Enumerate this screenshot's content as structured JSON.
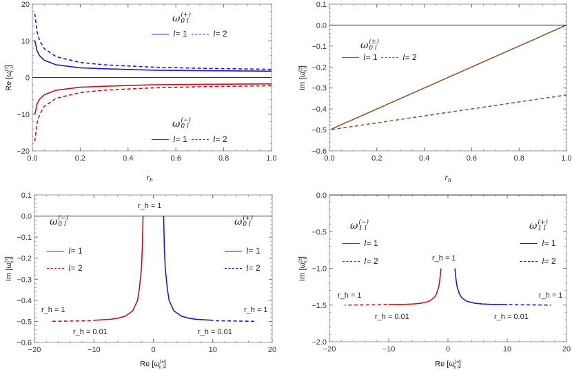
{
  "colors": {
    "plus": "#1a1ab8",
    "minus": "#b8161c",
    "imag": "#8c5a32",
    "zero_line": "#333333"
  },
  "chart_data": [
    {
      "type": "line",
      "id": "A",
      "xlabel": "r",
      "xlabel_sub": "h",
      "ylabel": "Re [ω",
      "ylabel_sup": "(±)",
      "ylabel_sub": "n l",
      "ylabel_end": "]",
      "xlim": [
        0,
        1
      ],
      "ylim": [
        -20,
        20
      ],
      "xticks": [
        0,
        0.2,
        0.4,
        0.6,
        0.8,
        1.0
      ],
      "xtick_labels": [
        "0.0",
        "0.2",
        "0.4",
        "0.6",
        "0.8",
        "1.0"
      ],
      "yticks": [
        -20,
        -10,
        0,
        10,
        20
      ],
      "ytick_labels": [
        "−20",
        "−10",
        "0",
        "10",
        "20"
      ],
      "minor_x": 0.05,
      "minor_y": 2,
      "legend": [
        {
          "title": "ω",
          "sup": "(+)",
          "sub": "0 l",
          "entries": [
            "l = 1",
            "l = 2"
          ]
        },
        {
          "title": "ω",
          "sup": "(−)",
          "sub": "0 l",
          "entries": [
            "l = 1",
            "l = 2"
          ]
        }
      ],
      "series": [
        {
          "branch": "plus",
          "l": 1,
          "dashed": false,
          "x": [
            0.01,
            0.02,
            0.03,
            0.05,
            0.1,
            0.2,
            0.3,
            0.5,
            0.7,
            1.0
          ],
          "y": [
            10.1,
            7.21,
            5.95,
            4.69,
            3.46,
            2.65,
            2.38,
            2.0,
            1.85,
            1.73
          ]
        },
        {
          "branch": "plus",
          "l": 2,
          "dashed": true,
          "x": [
            0.01,
            0.02,
            0.03,
            0.05,
            0.1,
            0.2,
            0.3,
            0.5,
            0.7,
            1.0
          ],
          "y": [
            17.4,
            12.3,
            10.1,
            7.87,
            5.66,
            4.12,
            3.46,
            2.83,
            2.51,
            2.24
          ]
        },
        {
          "branch": "minus",
          "l": 1,
          "dashed": false,
          "x": [
            0.01,
            0.02,
            0.03,
            0.05,
            0.1,
            0.2,
            0.3,
            0.5,
            0.7,
            1.0
          ],
          "y": [
            -10.1,
            -7.21,
            -5.95,
            -4.69,
            -3.46,
            -2.65,
            -2.38,
            -2.0,
            -1.85,
            -1.73
          ]
        },
        {
          "branch": "minus",
          "l": 2,
          "dashed": true,
          "x": [
            0.01,
            0.02,
            0.03,
            0.05,
            0.1,
            0.2,
            0.3,
            0.5,
            0.7,
            1.0
          ],
          "y": [
            -17.4,
            -12.3,
            -10.1,
            -7.87,
            -5.66,
            -4.12,
            -3.46,
            -2.83,
            -2.51,
            -2.24
          ]
        }
      ]
    },
    {
      "type": "line",
      "id": "B",
      "xlabel": "r",
      "xlabel_sub": "h",
      "ylabel": "Im [ω",
      "ylabel_sup": "(±)",
      "ylabel_sub": "n l",
      "ylabel_end": "]",
      "xlim": [
        0,
        1
      ],
      "ylim": [
        -0.6,
        0.1
      ],
      "xticks": [
        0,
        0.2,
        0.4,
        0.6,
        0.8,
        1.0
      ],
      "xtick_labels": [
        "0.0",
        "0.2",
        "0.4",
        "0.6",
        "0.8",
        "1.0"
      ],
      "yticks": [
        0.1,
        0,
        -0.1,
        -0.2,
        -0.3,
        -0.4,
        -0.5,
        -0.6
      ],
      "ytick_labels": [
        "0.1",
        "0.0",
        "−0.1",
        "−0.2",
        "−0.3",
        "−0.4",
        "−0.5",
        "−0.6"
      ],
      "minor_x": 0.05,
      "minor_y": 0.02,
      "legend": [
        {
          "title": "ω",
          "sup": "(±)",
          "sub": "0 l",
          "entries": [
            "l = 1",
            "l = 2"
          ]
        }
      ],
      "series": [
        {
          "branch": "imag",
          "l": 1,
          "dashed": false,
          "x": [
            0.01,
            1.0
          ],
          "y": [
            -0.495,
            0.0
          ]
        },
        {
          "branch": "imag",
          "l": 2,
          "dashed": true,
          "x": [
            0.01,
            1.0
          ],
          "y": [
            -0.498,
            -0.333
          ]
        }
      ]
    },
    {
      "type": "line",
      "id": "C",
      "xlabel": "Re [ω",
      "xlabel_sup": "(±)",
      "xlabel_sub": "n l",
      "xlabel_end": "]",
      "ylabel": "Im [ω",
      "ylabel_sup": "(±)",
      "ylabel_sub": "n l",
      "ylabel_end": "]",
      "xlim": [
        -20,
        20
      ],
      "ylim": [
        -0.6,
        0.1
      ],
      "xticks": [
        -20,
        -10,
        0,
        10,
        20
      ],
      "xtick_labels": [
        "−20",
        "−10",
        "0",
        "10",
        "20"
      ],
      "yticks": [
        0.1,
        0,
        -0.1,
        -0.2,
        -0.3,
        -0.4,
        -0.5,
        -0.6
      ],
      "ytick_labels": [
        "0.1",
        "0.0",
        "−0.1",
        "−0.2",
        "−0.3",
        "−0.4",
        "−0.5",
        "−0.6"
      ],
      "minor_x": 2,
      "minor_y": 0.02,
      "legend": [
        {
          "title": "ω",
          "sup": "(−)",
          "sub": "0 l",
          "entries": [
            "l = 1",
            "l = 2"
          ]
        },
        {
          "title": "ω",
          "sup": "(+)",
          "sub": "0 l",
          "entries": [
            "l = 1",
            "l = 2"
          ]
        }
      ],
      "annotations": [
        "r_h = 1",
        "r_h = 1",
        "r_h = 0.01",
        "r_h = 0.01",
        "r_h = 1"
      ],
      "series": [
        {
          "branch": "plus",
          "l": 1,
          "dashed": false,
          "x": [
            10.1,
            7.21,
            5.95,
            4.69,
            3.46,
            2.65,
            2.38,
            2.0,
            1.85,
            1.73
          ],
          "y": [
            -0.495,
            -0.49,
            -0.485,
            -0.475,
            -0.45,
            -0.4,
            -0.35,
            -0.25,
            -0.15,
            0.0
          ]
        },
        {
          "branch": "plus",
          "l": 2,
          "dashed": true,
          "x": [
            10.5,
            17.4
          ],
          "y": [
            -0.497,
            -0.5
          ]
        },
        {
          "branch": "minus",
          "l": 1,
          "dashed": false,
          "x": [
            -10.1,
            -7.21,
            -5.95,
            -4.69,
            -3.46,
            -2.65,
            -2.38,
            -2.0,
            -1.85,
            -1.73
          ],
          "y": [
            -0.495,
            -0.49,
            -0.485,
            -0.475,
            -0.45,
            -0.4,
            -0.35,
            -0.25,
            -0.15,
            0.0
          ]
        },
        {
          "branch": "minus",
          "l": 2,
          "dashed": true,
          "x": [
            -10.5,
            -17.4
          ],
          "y": [
            -0.497,
            -0.5
          ]
        }
      ]
    },
    {
      "type": "line",
      "id": "D",
      "xlabel": "Re [ω",
      "xlabel_sup": "(±)",
      "xlabel_sub": "n l",
      "xlabel_end": "]",
      "ylabel": "Im [ω",
      "ylabel_sup": "(±)",
      "ylabel_sub": "n l",
      "ylabel_end": "]",
      "xlim": [
        -20,
        20
      ],
      "ylim": [
        -2.0,
        0.0
      ],
      "xticks": [
        -20,
        -10,
        0,
        10,
        20
      ],
      "xtick_labels": [
        "−20",
        "−10",
        "0",
        "10",
        "20"
      ],
      "yticks": [
        0,
        -0.5,
        -1.0,
        -1.5,
        -2.0
      ],
      "ytick_labels": [
        "0.0",
        "−0.5",
        "−1.0",
        "−1.5",
        "−2.0"
      ],
      "minor_x": 2,
      "minor_y": 0.1,
      "legend": [
        {
          "title": "ω",
          "sup": "(−)",
          "sub": "1 l",
          "entries": [
            "l = 1",
            "l = 2"
          ]
        },
        {
          "title": "ω",
          "sup": "(+)",
          "sub": "1 l",
          "entries": [
            "l = 1",
            "l = 2"
          ]
        }
      ],
      "annotations": [
        "r_h = 1",
        "r_h = 1",
        "r_h = 0.01",
        "r_h = 0.01",
        "r_h = 1"
      ],
      "series": [
        {
          "branch": "plus",
          "l": 1,
          "dashed": false,
          "x": [
            10.02,
            7.1,
            5.8,
            4.52,
            3.22,
            2.32,
            1.94,
            1.55,
            1.36,
            1.18
          ],
          "y": [
            -1.495,
            -1.49,
            -1.485,
            -1.475,
            -1.45,
            -1.4,
            -1.35,
            -1.25,
            -1.15,
            -1.0
          ]
        },
        {
          "branch": "plus",
          "l": 2,
          "dashed": true,
          "x": [
            10.3,
            17.4
          ],
          "y": [
            -1.495,
            -1.5
          ]
        },
        {
          "branch": "minus",
          "l": 1,
          "dashed": false,
          "x": [
            -10.02,
            -7.1,
            -5.8,
            -4.52,
            -3.22,
            -2.32,
            -1.94,
            -1.55,
            -1.36,
            -1.18
          ],
          "y": [
            -1.495,
            -1.49,
            -1.485,
            -1.475,
            -1.45,
            -1.4,
            -1.35,
            -1.25,
            -1.15,
            -1.0
          ]
        },
        {
          "branch": "minus",
          "l": 2,
          "dashed": true,
          "x": [
            -10.3,
            -17.4
          ],
          "y": [
            -1.495,
            -1.5
          ]
        }
      ]
    }
  ]
}
